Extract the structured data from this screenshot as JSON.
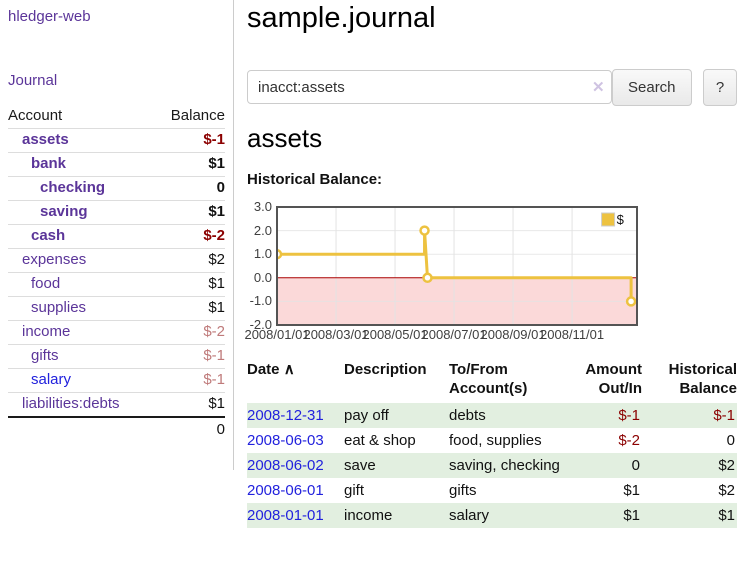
{
  "theme": {
    "purple": "#5b3599",
    "blue": "#2222dd",
    "text": "#111111",
    "negative": "#8b0000",
    "negative_faded": "#bf7a7a",
    "stripe_green": "#e2efe0",
    "clear_icon_color": "#cfc3e2",
    "chart_line": "#edc240",
    "chart_negative_bg": "#fbd9d9",
    "chart_zero_line": "#aa0000",
    "chart_grid": "#e3e3e3",
    "chart_border": "#545454"
  },
  "sidebar": {
    "app_title": "hledger-web",
    "journal_label": "Journal",
    "accounts": {
      "header_account": "Account",
      "header_balance": "Balance",
      "rows": [
        {
          "name": "assets",
          "balance": "$-1",
          "indent": 1,
          "bold": true,
          "name_color": "purple",
          "bal_color": "negative"
        },
        {
          "name": "bank",
          "balance": "$1",
          "indent": 2,
          "bold": true,
          "name_color": "purple",
          "bal_color": "text"
        },
        {
          "name": "checking",
          "balance": "0",
          "indent": 3,
          "bold": true,
          "name_color": "purple",
          "bal_color": "text"
        },
        {
          "name": "saving",
          "balance": "$1",
          "indent": 3,
          "bold": true,
          "name_color": "purple",
          "bal_color": "text"
        },
        {
          "name": "cash",
          "balance": "$-2",
          "indent": 2,
          "bold": true,
          "name_color": "purple",
          "bal_color": "negative"
        },
        {
          "name": "expenses",
          "balance": "$2",
          "indent": 1,
          "bold": false,
          "name_color": "purple",
          "bal_color": "text"
        },
        {
          "name": "food",
          "balance": "$1",
          "indent": 2,
          "bold": false,
          "name_color": "purple",
          "bal_color": "text"
        },
        {
          "name": "supplies",
          "balance": "$1",
          "indent": 2,
          "bold": false,
          "name_color": "purple",
          "bal_color": "text"
        },
        {
          "name": "income",
          "balance": "$-2",
          "indent": 1,
          "bold": false,
          "name_color": "purple",
          "bal_color": "negative_faded"
        },
        {
          "name": "gifts",
          "balance": "$-1",
          "indent": 2,
          "bold": false,
          "name_color": "purple",
          "bal_color": "negative_faded"
        },
        {
          "name": "salary",
          "balance": "$-1",
          "indent": 2,
          "bold": false,
          "name_color": "blue",
          "bal_color": "negative_faded"
        },
        {
          "name": "liabilities:debts",
          "balance": "$1",
          "indent": 1,
          "bold": false,
          "name_color": "purple",
          "bal_color": "text"
        }
      ],
      "total": "0"
    }
  },
  "main": {
    "title": "sample.journal",
    "search": {
      "value": "inacct:assets",
      "clear_icon": "✕",
      "button_label": "Search",
      "help_label": "?"
    },
    "account_heading": "assets",
    "chart_title": "Historical Balance:"
  },
  "register": {
    "headers": [
      {
        "line1": "Date",
        "line2": "",
        "sort_icon": "∧"
      },
      {
        "line1": "Description",
        "line2": ""
      },
      {
        "line1": "To/From",
        "line2": "Account(s)"
      },
      {
        "line1": "Amount",
        "line2": "Out/In",
        "align": "right"
      },
      {
        "line1": "Historical",
        "line2": "Balance",
        "align": "right"
      }
    ],
    "rows": [
      {
        "date": "2008-12-31",
        "description": "pay off",
        "accounts": "debts",
        "amount": "$-1",
        "amount_color": "negative",
        "balance": "$-1",
        "balance_color": "negative"
      },
      {
        "date": "2008-06-03",
        "description": "eat & shop",
        "accounts": "food, supplies",
        "amount": "$-2",
        "amount_color": "negative",
        "balance": "0",
        "balance_color": "text"
      },
      {
        "date": "2008-06-02",
        "description": "save",
        "accounts": "saving, checking",
        "amount": "0",
        "amount_color": "text",
        "balance": "$2",
        "balance_color": "text"
      },
      {
        "date": "2008-06-01",
        "description": "gift",
        "accounts": "gifts",
        "amount": "$1",
        "amount_color": "text",
        "balance": "$2",
        "balance_color": "text"
      },
      {
        "date": "2008-01-01",
        "description": "income",
        "accounts": "salary",
        "amount": "$1",
        "amount_color": "text",
        "balance": "$1",
        "balance_color": "text"
      }
    ]
  },
  "chart_data": {
    "type": "line",
    "title": "Historical Balance:",
    "legend": {
      "label": "$",
      "position": "top-right"
    },
    "ylim": [
      -2,
      3
    ],
    "yticks": [
      "3.0",
      "2.0",
      "1.0",
      "0.0",
      "-1.0",
      "-2.0"
    ],
    "xlim_months": [
      0,
      12.2
    ],
    "xticks": [
      {
        "month": 0,
        "label": "2008/01/01"
      },
      {
        "month": 2,
        "label": "2008/03/01"
      },
      {
        "month": 4,
        "label": "2008/05/01"
      },
      {
        "month": 6,
        "label": "2008/07/01"
      },
      {
        "month": 8,
        "label": "2008/09/01"
      },
      {
        "month": 10,
        "label": "2008/11/01"
      }
    ],
    "data_points": [
      {
        "date": "2008-01-01",
        "value": 1
      },
      {
        "date": "2008-06-01",
        "value": 2
      },
      {
        "date": "2008-06-03",
        "value": 0
      },
      {
        "date": "2008-12-31",
        "value": -1
      }
    ],
    "line_path_months": [
      [
        0,
        1
      ],
      [
        5,
        1
      ],
      [
        5,
        2
      ],
      [
        5.1,
        0
      ],
      [
        12,
        0
      ],
      [
        12,
        -1
      ]
    ],
    "marker_points_months": [
      [
        0,
        1
      ],
      [
        5,
        2
      ],
      [
        5.1,
        0
      ],
      [
        12,
        -1
      ]
    ],
    "negative_region": {
      "from": 0,
      "to": -2
    },
    "grid": true
  }
}
